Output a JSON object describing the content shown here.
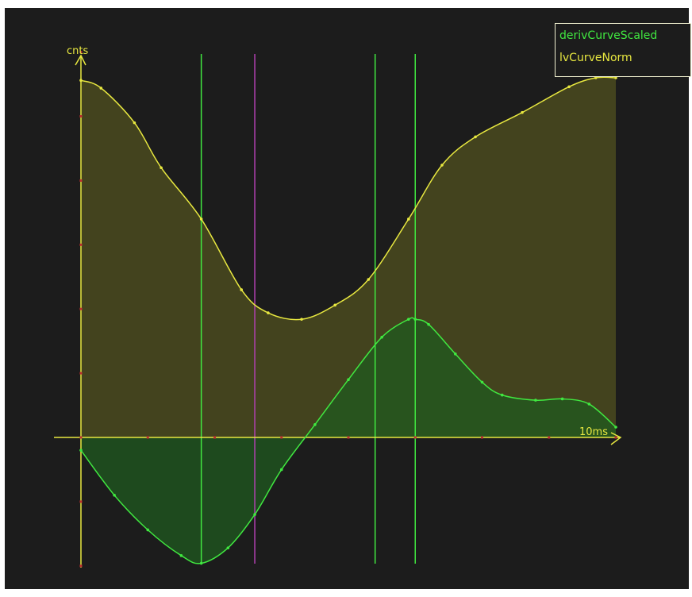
{
  "chart_data": {
    "type": "area",
    "y_axis_label": "cnts",
    "x_axis_label": "10ms",
    "xlim": [
      0,
      8
    ],
    "ylim": [
      -1,
      2.8
    ],
    "colors": {
      "background": "#1c1c1c",
      "axis": "#e8e840",
      "deriv_line": "#40e840",
      "deriv_fill": "#1f5a1f",
      "lv_line": "#e8e840",
      "lv_fill": "#4a4a1e",
      "marker_green": "#40e840",
      "marker_magenta": "#b040b0"
    },
    "series": [
      {
        "name": "derivCurveScaled",
        "color": "#40e840",
        "x": [
          0,
          0.5,
          1.0,
          1.5,
          1.8,
          2.2,
          2.6,
          3.0,
          3.5,
          4.0,
          4.5,
          4.9,
          5.0,
          5.2,
          5.6,
          6.0,
          6.3,
          6.8,
          7.2,
          7.6,
          8.0
        ],
        "y": [
          -0.1,
          -0.45,
          -0.72,
          -0.92,
          -0.98,
          -0.86,
          -0.6,
          -0.25,
          0.1,
          0.45,
          0.78,
          0.92,
          0.92,
          0.88,
          0.65,
          0.43,
          0.33,
          0.29,
          0.3,
          0.26,
          0.08
        ]
      },
      {
        "name": "lvCurveNorm",
        "color": "#e8e840",
        "x": [
          0,
          0.3,
          0.8,
          1.2,
          1.8,
          2.4,
          2.8,
          3.3,
          3.8,
          4.3,
          4.9,
          5.4,
          5.9,
          6.6,
          7.3,
          7.7,
          8.0
        ],
        "y": [
          2.78,
          2.72,
          2.45,
          2.1,
          1.7,
          1.15,
          0.97,
          0.92,
          1.03,
          1.23,
          1.7,
          2.12,
          2.34,
          2.53,
          2.73,
          2.8,
          2.8
        ]
      }
    ],
    "vertical_markers": [
      {
        "x": 1.8,
        "color": "#40e840"
      },
      {
        "x": 2.6,
        "color": "#b040b0"
      },
      {
        "x": 4.4,
        "color": "#40e840"
      },
      {
        "x": 5.0,
        "color": "#40e840"
      }
    ],
    "legend": {
      "placement": "top-right",
      "entries": [
        {
          "label": "derivCurveScaled",
          "color": "#40e840"
        },
        {
          "label": "lvCurveNorm",
          "color": "#e8e840"
        }
      ]
    }
  }
}
